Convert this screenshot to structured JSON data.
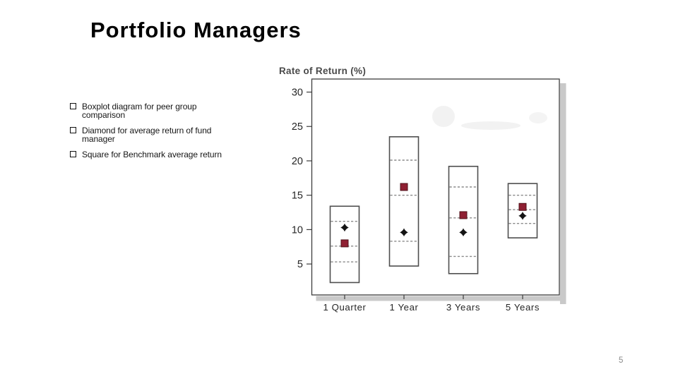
{
  "slide": {
    "title": "Portfolio Managers",
    "bullets": [
      "Boxplot diagram for peer group comparison",
      "Diamond for average return of fund manager",
      "Square for Benchmark average return"
    ],
    "page_number": "5"
  },
  "colors": {
    "benchmark_square": "#8f2033",
    "benchmark_square_border": "#4f1118",
    "manager_diamond": "#141414",
    "box_border": "#4e4e4e",
    "quartile_dash": "#8a8a8a",
    "axis_line": "#3d3d3d",
    "axis_text": "#262626",
    "chart_title_text": "#4a4a4a",
    "shadow": "#c9c9c9"
  },
  "chart_data": {
    "type": "boxplot",
    "title": "Rate of Return (%)",
    "xlabel": "",
    "ylabel": "Rate of Return (%)",
    "categories": [
      "1 Quarter",
      "1 Year",
      "3 Years",
      "5 Years"
    ],
    "yticks": [
      30,
      25,
      20,
      15,
      10,
      5
    ],
    "ylim": [
      0.5,
      31.9
    ],
    "grid": false,
    "legend": "none (markers explained in slide bullets)",
    "series": [
      {
        "category": "1 Quarter",
        "box_top": 13.4,
        "box_bottom": 2.3,
        "quartile_lines": [
          11.2,
          7.6,
          5.3
        ],
        "fund_manager_avg_diamond": 10.3,
        "benchmark_avg_square": 8.0
      },
      {
        "category": "1 Year",
        "box_top": 23.5,
        "box_bottom": 4.7,
        "quartile_lines": [
          20.1,
          15.0,
          8.3
        ],
        "fund_manager_avg_diamond": 9.6,
        "benchmark_avg_square": 16.2
      },
      {
        "category": "3 Years",
        "box_top": 19.2,
        "box_bottom": 3.6,
        "quartile_lines": [
          16.2,
          11.7,
          6.1
        ],
        "fund_manager_avg_diamond": 9.6,
        "benchmark_avg_square": 12.1
      },
      {
        "category": "5 Years",
        "box_top": 16.7,
        "box_bottom": 8.8,
        "quartile_lines": [
          15.0,
          12.9,
          10.9
        ],
        "fund_manager_avg_diamond": 12.0,
        "benchmark_avg_square": 13.3
      }
    ]
  }
}
